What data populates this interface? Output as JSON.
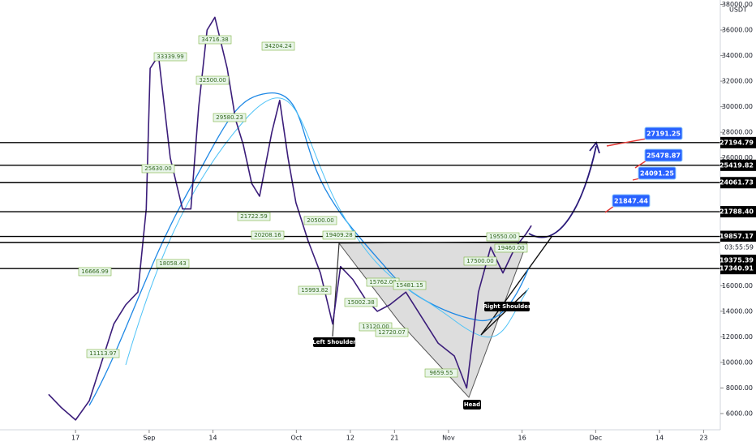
{
  "chart_data": {
    "type": "line",
    "currency": "USDT",
    "color": "#3b1d7a",
    "x": [
      -5.5,
      -3,
      0,
      2.8,
      5.3,
      7.8,
      10.2,
      12.7,
      14.4,
      15.2,
      16.9,
      19.3,
      21.8,
      23.5,
      25.1,
      26.8,
      28.4,
      30.9,
      32.6,
      34.2,
      35.9,
      37.5,
      40,
      41.6,
      43.3,
      44.9,
      47.4,
      49.9,
      52.4,
      54,
      56.5,
      59,
      61.5,
      64,
      67.3,
      70.6,
      73.9,
      77.2,
      79.7,
      82.1,
      84.6,
      87.1,
      89.6,
      91.7,
      92.9
    ],
    "values": [
      7500,
      6500,
      5500,
      7000,
      10000,
      13000,
      14500,
      15500,
      22000,
      33000,
      34000,
      26000,
      22000,
      22000,
      30000,
      36000,
      37000,
      33000,
      29000,
      27000,
      24000,
      23000,
      28000,
      30500,
      26000,
      22500,
      19500,
      17000,
      13000,
      17500,
      16500,
      15000,
      14000,
      14500,
      15500,
      13500,
      11500,
      10500,
      8000,
      15500,
      19000,
      17000,
      19000,
      20000,
      20700
    ],
    "xlim": [
      -15.4,
      131.4
    ],
    "xticks": [
      {
        "value": 0,
        "label": "17"
      },
      {
        "value": 15,
        "label": "Sep"
      },
      {
        "value": 28,
        "label": "14"
      },
      {
        "value": 45,
        "label": "Oct"
      },
      {
        "value": 56,
        "label": "12"
      },
      {
        "value": 65,
        "label": "21"
      },
      {
        "value": 76,
        "label": "Nov"
      },
      {
        "value": 91,
        "label": "16"
      },
      {
        "value": 106,
        "label": "Dec"
      },
      {
        "value": 119,
        "label": "14"
      },
      {
        "value": 128,
        "label": "23"
      }
    ],
    "ylim": [
      4730,
      38350
    ],
    "yticks": [
      {
        "value": 6000,
        "label": "6000.00"
      },
      {
        "value": 8000,
        "label": "8000.00"
      },
      {
        "value": 10000,
        "label": "10000.00"
      },
      {
        "value": 12000,
        "label": "12000.00"
      },
      {
        "value": 14000,
        "label": "14000.00"
      },
      {
        "value": 16000,
        "label": "16000.00"
      },
      {
        "value": 26000,
        "label": "26000.00"
      },
      {
        "value": 28000,
        "label": "28000.00"
      },
      {
        "value": 30000,
        "label": "30000.00"
      },
      {
        "value": 32000,
        "label": "32000.00"
      },
      {
        "value": 34000,
        "label": "34000.00"
      },
      {
        "value": 36000,
        "label": "36000.00"
      },
      {
        "value": 38000,
        "label": "38000.00"
      }
    ],
    "levels": [
      27194.79,
      25419.82,
      24061.73,
      {
        "value": 21788.4,
        "label": "21788.40"
      },
      19857.17,
      19375.39,
      17340.91
    ],
    "countdown": "03:55:59",
    "targets": [
      27191.25,
      25478.87,
      24091.25,
      21847.44
    ],
    "price_labels": [
      "33339.99",
      "34716.38",
      "34204.24",
      "32500.00",
      "29580.23",
      "25630.00",
      "21722.59",
      "20500.00",
      "20208.16",
      "19409.28",
      "18058.43",
      "16666.99",
      "15993.82",
      "15762.00",
      "15481.15",
      "15002.38",
      "13120.00",
      "12720.07",
      "11113.97",
      "9659.55",
      "19550.00",
      "19460.00",
      "17500.00"
    ],
    "pattern_labels": [
      "Left Shoulder",
      "Head",
      "Right Shoulder"
    ]
  }
}
